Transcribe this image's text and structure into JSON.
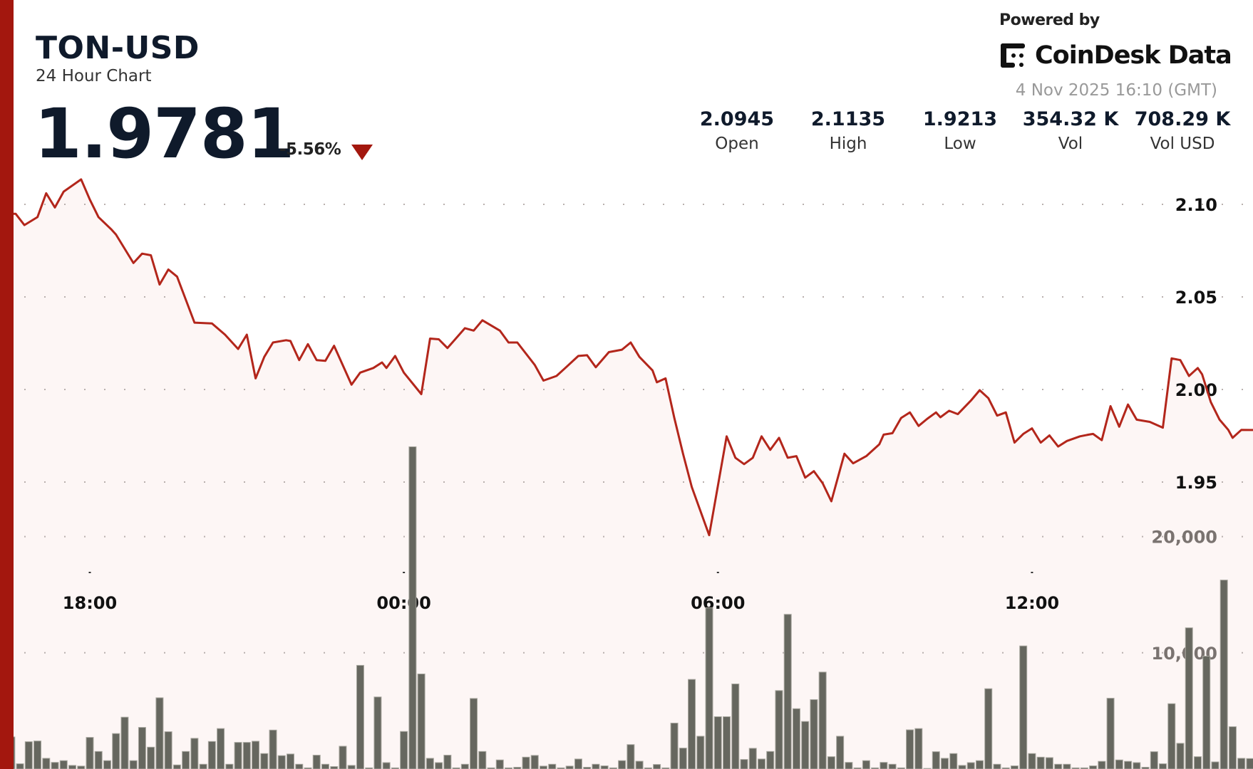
{
  "header": {
    "pair": "TON-USD",
    "subtitle": "24 Hour Chart",
    "price": "1.9781",
    "change": "-5.56%",
    "change_direction": "down",
    "powered_by": "Powered by",
    "brand": "CoinDesk Data",
    "timestamp": "4 Nov 2025 16:10 (GMT)"
  },
  "stats": [
    {
      "value": "2.0945",
      "label": "Open"
    },
    {
      "value": "2.1135",
      "label": "High"
    },
    {
      "value": "1.9213",
      "label": "Low"
    },
    {
      "value": "354.32 K",
      "label": "Vol"
    },
    {
      "value": "708.29 K",
      "label": "Vol USD"
    }
  ],
  "colors": {
    "accent": "#a3170e",
    "line": "#b3261b",
    "fill_top": "#c7726c",
    "fill_bottom": "#fdf6f5",
    "volume_bar": "#66675f"
  },
  "chart_data": {
    "type": "area",
    "xlabel": "",
    "ylabel": "",
    "x_ticks": [
      "18:00",
      "00:00",
      "06:00",
      "12:00"
    ],
    "y_ticks": [
      "2.10",
      "2.05",
      "2.00",
      "1.95"
    ],
    "y_tick_values": [
      2.1,
      2.05,
      2.0,
      1.95
    ],
    "volume_ticks": [
      "20,000",
      "10,000"
    ],
    "volume_tick_values": [
      20000,
      10000
    ],
    "grid": true,
    "price_series": [
      [
        "16:35",
        2.0949
      ],
      [
        "16:45",
        2.0888
      ],
      [
        "17:00",
        2.0931
      ],
      [
        "17:10",
        2.106
      ],
      [
        "17:20",
        2.0983
      ],
      [
        "17:30",
        2.1069
      ],
      [
        "17:50",
        2.1135
      ],
      [
        "18:00",
        2.1026
      ],
      [
        "18:10",
        2.0931
      ],
      [
        "18:25",
        2.0863
      ],
      [
        "18:30",
        2.0837
      ],
      [
        "18:50",
        2.0683
      ],
      [
        "19:00",
        2.0734
      ],
      [
        "19:10",
        2.0725
      ],
      [
        "19:20",
        2.0567
      ],
      [
        "19:30",
        2.0648
      ],
      [
        "19:40",
        2.061
      ],
      [
        "20:00",
        2.0361
      ],
      [
        "20:20",
        2.0357
      ],
      [
        "20:35",
        2.0296
      ],
      [
        "20:50",
        2.0219
      ],
      [
        "21:00",
        2.0296
      ],
      [
        "21:10",
        2.006
      ],
      [
        "21:20",
        2.0176
      ],
      [
        "21:30",
        2.0254
      ],
      [
        "21:45",
        2.0266
      ],
      [
        "21:50",
        2.0262
      ],
      [
        "22:00",
        2.0159
      ],
      [
        "22:10",
        2.0245
      ],
      [
        "22:20",
        2.0159
      ],
      [
        "22:30",
        2.0155
      ],
      [
        "22:40",
        2.0236
      ],
      [
        "23:00",
        2.0026
      ],
      [
        "23:10",
        2.0091
      ],
      [
        "23:25",
        2.0116
      ],
      [
        "23:35",
        2.0146
      ],
      [
        "23:40",
        2.0116
      ],
      [
        "23:50",
        2.0181
      ],
      [
        "00:00",
        2.0091
      ],
      [
        "00:20",
        1.9975
      ],
      [
        "00:30",
        2.0275
      ],
      [
        "00:40",
        2.0271
      ],
      [
        "00:50",
        2.0224
      ],
      [
        "01:10",
        2.0331
      ],
      [
        "01:20",
        2.0318
      ],
      [
        "01:30",
        2.0374
      ],
      [
        "01:50",
        2.0318
      ],
      [
        "02:00",
        2.0254
      ],
      [
        "02:10",
        2.0254
      ],
      [
        "02:30",
        2.0133
      ],
      [
        "02:40",
        2.0048
      ],
      [
        "02:55",
        2.0073
      ],
      [
        "03:05",
        2.0116
      ],
      [
        "03:20",
        2.0181
      ],
      [
        "03:30",
        2.0185
      ],
      [
        "03:40",
        2.012
      ],
      [
        "03:55",
        2.0202
      ],
      [
        "04:10",
        2.0215
      ],
      [
        "04:20",
        2.0254
      ],
      [
        "04:30",
        2.0176
      ],
      [
        "04:45",
        2.0103
      ],
      [
        "04:50",
        2.0039
      ],
      [
        "05:00",
        2.006
      ],
      [
        "05:10",
        1.9846
      ],
      [
        "05:20",
        1.9653
      ],
      [
        "05:30",
        1.9473
      ],
      [
        "05:50",
        1.9213
      ],
      [
        "06:00",
        1.9481
      ],
      [
        "06:10",
        1.9747
      ],
      [
        "06:20",
        1.9631
      ],
      [
        "06:30",
        1.9597
      ],
      [
        "06:40",
        1.9631
      ],
      [
        "06:50",
        1.9747
      ],
      [
        "07:00",
        1.9674
      ],
      [
        "07:10",
        1.9739
      ],
      [
        "07:20",
        1.9631
      ],
      [
        "07:30",
        1.964
      ],
      [
        "07:40",
        1.9524
      ],
      [
        "07:50",
        1.9559
      ],
      [
        "08:00",
        1.9494
      ],
      [
        "08:10",
        1.9396
      ],
      [
        "08:20",
        1.9567
      ],
      [
        "08:25",
        1.9653
      ],
      [
        "08:35",
        1.9601
      ],
      [
        "08:50",
        1.964
      ],
      [
        "09:05",
        1.9704
      ],
      [
        "09:10",
        1.9756
      ],
      [
        "09:20",
        1.9764
      ],
      [
        "09:30",
        1.9846
      ],
      [
        "09:40",
        1.9876
      ],
      [
        "09:50",
        1.9803
      ],
      [
        "10:00",
        1.9842
      ],
      [
        "10:10",
        1.9876
      ],
      [
        "10:15",
        1.985
      ],
      [
        "10:25",
        1.9885
      ],
      [
        "10:35",
        1.9867
      ],
      [
        "10:50",
        1.994
      ],
      [
        "11:00",
        1.9996
      ],
      [
        "11:10",
        1.9953
      ],
      [
        "11:20",
        1.9859
      ],
      [
        "11:30",
        1.9876
      ],
      [
        "11:40",
        1.9713
      ],
      [
        "11:50",
        1.976
      ],
      [
        "12:00",
        1.979
      ],
      [
        "12:10",
        1.9713
      ],
      [
        "12:20",
        1.9752
      ],
      [
        "12:30",
        1.9692
      ],
      [
        "12:40",
        1.9722
      ],
      [
        "12:55",
        1.9747
      ],
      [
        "13:05",
        1.9756
      ],
      [
        "13:10",
        1.976
      ],
      [
        "13:20",
        1.9726
      ],
      [
        "13:30",
        1.991
      ],
      [
        "13:40",
        1.9799
      ],
      [
        "13:50",
        1.9919
      ],
      [
        "14:00",
        1.9837
      ],
      [
        "14:15",
        1.9825
      ],
      [
        "14:30",
        1.9794
      ],
      [
        "14:40",
        2.0168
      ],
      [
        "14:50",
        2.0159
      ],
      [
        "15:00",
        2.0073
      ],
      [
        "15:10",
        2.0116
      ],
      [
        "15:15",
        2.0082
      ],
      [
        "15:25",
        1.9932
      ],
      [
        "15:35",
        1.9837
      ],
      [
        "15:45",
        1.9782
      ],
      [
        "15:50",
        1.9739
      ],
      [
        "16:00",
        1.9782
      ],
      [
        "16:10",
        1.9781
      ]
    ],
    "volume_series": [
      [
        "16:30",
        2760
      ],
      [
        "16:40",
        450
      ],
      [
        "16:50",
        2350
      ],
      [
        "17:00",
        2410
      ],
      [
        "17:10",
        920
      ],
      [
        "17:20",
        570
      ],
      [
        "17:30",
        720
      ],
      [
        "17:40",
        310
      ],
      [
        "17:50",
        250
      ],
      [
        "18:00",
        2720
      ],
      [
        "18:10",
        1510
      ],
      [
        "18:20",
        720
      ],
      [
        "18:30",
        3050
      ],
      [
        "18:40",
        4460
      ],
      [
        "18:50",
        720
      ],
      [
        "19:00",
        3580
      ],
      [
        "19:10",
        1880
      ],
      [
        "19:20",
        6130
      ],
      [
        "19:30",
        3210
      ],
      [
        "19:40",
        350
      ],
      [
        "19:50",
        1510
      ],
      [
        "20:00",
        2640
      ],
      [
        "20:10",
        410
      ],
      [
        "20:20",
        2370
      ],
      [
        "20:30",
        3480
      ],
      [
        "20:40",
        410
      ],
      [
        "20:50",
        2290
      ],
      [
        "21:00",
        2290
      ],
      [
        "21:10",
        2390
      ],
      [
        "21:20",
        1330
      ],
      [
        "21:30",
        3350
      ],
      [
        "21:40",
        1150
      ],
      [
        "21:50",
        1290
      ],
      [
        "22:00",
        410
      ],
      [
        "22:10",
        100
      ],
      [
        "22:20",
        1190
      ],
      [
        "22:30",
        410
      ],
      [
        "22:40",
        210
      ],
      [
        "22:50",
        1960
      ],
      [
        "23:00",
        310
      ],
      [
        "23:10",
        8920
      ],
      [
        "23:20",
        100
      ],
      [
        "23:30",
        6200
      ],
      [
        "23:40",
        550
      ],
      [
        "23:50",
        100
      ],
      [
        "00:00",
        3230
      ],
      [
        "00:10",
        27730
      ],
      [
        "00:20",
        8180
      ],
      [
        "00:30",
        920
      ],
      [
        "00:40",
        550
      ],
      [
        "00:50",
        1190
      ],
      [
        "01:00",
        100
      ],
      [
        "01:10",
        410
      ],
      [
        "01:20",
        6070
      ],
      [
        "01:30",
        1510
      ],
      [
        "01:40",
        100
      ],
      [
        "01:50",
        780
      ],
      [
        "02:00",
        100
      ],
      [
        "02:10",
        150
      ],
      [
        "02:20",
        1020
      ],
      [
        "02:30",
        1170
      ],
      [
        "02:40",
        250
      ],
      [
        "02:50",
        410
      ],
      [
        "03:00",
        100
      ],
      [
        "03:10",
        250
      ],
      [
        "03:20",
        860
      ],
      [
        "03:30",
        150
      ],
      [
        "03:40",
        410
      ],
      [
        "03:50",
        270
      ],
      [
        "04:00",
        100
      ],
      [
        "04:10",
        720
      ],
      [
        "04:20",
        2100
      ],
      [
        "04:30",
        670
      ],
      [
        "04:40",
        100
      ],
      [
        "04:50",
        390
      ],
      [
        "05:00",
        100
      ],
      [
        "05:10",
        3950
      ],
      [
        "05:20",
        1800
      ],
      [
        "05:30",
        7710
      ],
      [
        "05:40",
        2820
      ],
      [
        "05:50",
        13870
      ],
      [
        "06:00",
        4500
      ],
      [
        "06:10",
        4500
      ],
      [
        "06:20",
        7320
      ],
      [
        "06:30",
        820
      ],
      [
        "06:40",
        1780
      ],
      [
        "06:50",
        860
      ],
      [
        "07:00",
        1510
      ],
      [
        "07:10",
        6750
      ],
      [
        "07:20",
        13310
      ],
      [
        "07:30",
        5190
      ],
      [
        "07:40",
        4090
      ],
      [
        "07:50",
        5970
      ],
      [
        "08:00",
        8340
      ],
      [
        "08:10",
        1060
      ],
      [
        "08:20",
        2820
      ],
      [
        "08:30",
        570
      ],
      [
        "08:40",
        100
      ],
      [
        "08:50",
        720
      ],
      [
        "09:00",
        100
      ],
      [
        "09:10",
        570
      ],
      [
        "09:20",
        410
      ],
      [
        "09:30",
        100
      ],
      [
        "09:40",
        3370
      ],
      [
        "09:50",
        3480
      ],
      [
        "10:00",
        50
      ],
      [
        "10:10",
        1490
      ],
      [
        "10:20",
        920
      ],
      [
        "10:30",
        1330
      ],
      [
        "10:40",
        310
      ],
      [
        "10:50",
        550
      ],
      [
        "11:00",
        720
      ],
      [
        "11:10",
        6910
      ],
      [
        "11:20",
        410
      ],
      [
        "11:30",
        100
      ],
      [
        "11:40",
        270
      ],
      [
        "11:50",
        10590
      ],
      [
        "12:00",
        1330
      ],
      [
        "12:10",
        1020
      ],
      [
        "12:20",
        980
      ],
      [
        "12:30",
        410
      ],
      [
        "12:40",
        410
      ],
      [
        "12:50",
        100
      ],
      [
        "13:00",
        100
      ],
      [
        "13:10",
        270
      ],
      [
        "13:20",
        660
      ],
      [
        "13:30",
        6090
      ],
      [
        "13:40",
        780
      ],
      [
        "13:50",
        660
      ],
      [
        "14:00",
        550
      ],
      [
        "14:10",
        150
      ],
      [
        "14:20",
        1490
      ],
      [
        "14:30",
        450
      ],
      [
        "14:40",
        5620
      ],
      [
        "14:50",
        2210
      ],
      [
        "15:00",
        12150
      ],
      [
        "15:10",
        1060
      ],
      [
        "15:20",
        9710
      ],
      [
        "15:30",
        610
      ],
      [
        "15:40",
        16260
      ],
      [
        "15:50",
        3640
      ],
      [
        "16:00",
        920
      ],
      [
        "16:10",
        900
      ]
    ]
  }
}
